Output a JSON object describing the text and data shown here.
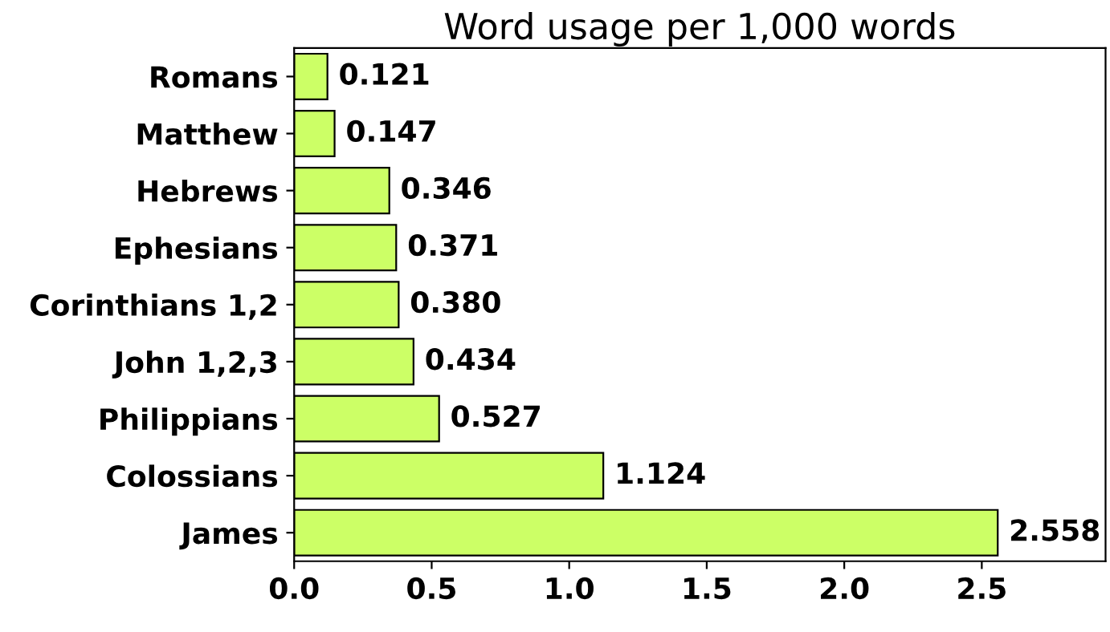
{
  "chart_data": {
    "type": "bar",
    "orientation": "horizontal",
    "title": "Word usage per 1,000 words",
    "categories": [
      "Romans",
      "Matthew",
      "Hebrews",
      "Ephesians",
      "Corinthians 1,2",
      "John 1,2,3",
      "Philippians",
      "Colossians",
      "James"
    ],
    "values": [
      0.121,
      0.147,
      0.346,
      0.371,
      0.38,
      0.434,
      0.527,
      1.124,
      2.558
    ],
    "value_labels": [
      "0.121",
      "0.147",
      "0.346",
      "0.371",
      "0.380",
      "0.434",
      "0.527",
      "1.124",
      "2.558"
    ],
    "color": "#ccff66",
    "xlim": [
      0,
      2.95
    ],
    "xticks": [
      {
        "value": 0,
        "label": "0.0"
      },
      {
        "value": 0.5,
        "label": "0.5"
      },
      {
        "value": 1,
        "label": "1.0"
      },
      {
        "value": 1.5,
        "label": "1.5"
      },
      {
        "value": 2,
        "label": "2.0"
      },
      {
        "value": 2.5,
        "label": "2.5"
      }
    ],
    "grid": false
  }
}
